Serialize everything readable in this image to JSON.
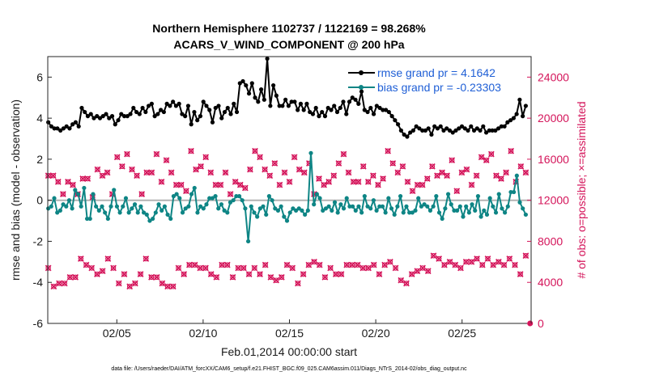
{
  "chart_data": {
    "type": "line",
    "title_line1": "Northern Hemisphere 1102737 / 1122169 = 98.268%",
    "title_line2": "ACARS_V_WIND_COMPONENT @ 200 hPa",
    "xlabel": "Feb.01,2014 00:00:00 start",
    "ylabel_left": "rmse and bias (model - observation)",
    "ylabel_right": "# of obs: o=possible; ×=assimilated",
    "footer": "data file: /Users/raeder/DAI/ATM_forcXX/CAM6_setup/f.e21.FHIST_BGC.f09_025.CAM6assim.011/Diags_NTrS_2014-02/obs_diag_output.nc",
    "xlim": [
      1,
      29
    ],
    "ylim_left": [
      -6,
      7
    ],
    "ylim_right": [
      0,
      26000
    ],
    "x_ticks": [
      5,
      10,
      15,
      20,
      25
    ],
    "x_tick_labels": [
      "02/05",
      "02/10",
      "02/15",
      "02/20",
      "02/25"
    ],
    "y_ticks_left": [
      "-6",
      "-4",
      "-2",
      "0",
      "2",
      "4",
      "6"
    ],
    "y_ticks_right": [
      "0",
      "4000",
      "8000",
      "12000",
      "16000",
      "20000",
      "24000"
    ],
    "colors": {
      "rmse": "#000000",
      "bias": "#0e8585",
      "obs": "#d4145a",
      "zero_line": "#b3b3b3",
      "legend_text": "#1f5fd6"
    },
    "series": [
      {
        "name": "rmse",
        "legend": "rmse grand pr = 4.1642",
        "values": [
          3.8,
          3.6,
          3.5,
          3.5,
          3.4,
          3.5,
          3.6,
          3.5,
          3.7,
          3.8,
          3.6,
          4.5,
          4.3,
          4.1,
          4.2,
          4.0,
          4.1,
          4.0,
          4.1,
          4.2,
          4.0,
          4.1,
          3.7,
          3.9,
          4.2,
          4.1,
          4.1,
          4.2,
          4.5,
          4.3,
          4.2,
          4.5,
          4.3,
          4.6,
          4.7,
          4.1,
          4.2,
          4.4,
          4.3,
          4.7,
          4.6,
          4.8,
          4.6,
          4.7,
          4.2,
          4.1,
          4.6,
          3.7,
          4.3,
          3.9,
          4.1,
          4.8,
          4.6,
          4.4,
          3.8,
          4.5,
          4.6,
          4.0,
          4.3,
          4.5,
          4.2,
          4.7,
          4.3,
          5.7,
          5.8,
          5.6,
          5.2,
          5.7,
          5.0,
          4.8,
          5.4,
          4.9,
          6.9,
          4.6,
          5.6,
          5.1,
          4.6,
          4.6,
          4.9,
          4.6,
          4.8,
          4.8,
          4.4,
          4.7,
          4.4,
          4.7,
          4.3,
          4.2,
          4.5,
          4.1,
          4.3,
          4.1,
          4.5,
          4.4,
          4.6,
          4.3,
          4.5,
          4.8,
          4.2,
          4.8,
          5.0,
          4.9,
          4.7,
          5.3,
          4.4,
          4.3,
          4.5,
          4.2,
          4.6,
          4.5,
          4.4,
          4.4,
          4.3,
          4.1,
          3.9,
          3.7,
          3.4,
          3.2,
          3.1,
          3.3,
          3.4,
          3.6,
          3.5,
          3.4,
          3.4,
          3.5,
          3.2,
          3.6,
          3.5,
          3.6,
          3.4,
          3.5,
          3.4,
          3.3,
          3.4,
          3.5,
          3.6,
          3.5,
          3.4,
          3.6,
          3.4,
          3.5,
          3.4,
          3.6,
          3.3,
          3.4,
          3.4,
          3.4,
          3.5,
          3.6,
          3.6,
          3.8,
          3.9,
          4.0,
          4.2,
          4.9,
          4.1,
          4.6
        ]
      },
      {
        "name": "bias",
        "legend": "bias grand pr = -0.23303",
        "values": [
          -0.4,
          -0.3,
          0.1,
          -0.6,
          -0.5,
          -0.2,
          -0.3,
          0.0,
          -0.4,
          0.5,
          0.3,
          -0.3,
          0.6,
          -0.9,
          -0.9,
          0.3,
          -0.3,
          -0.5,
          -0.3,
          -0.6,
          -0.9,
          -0.3,
          0.5,
          -0.3,
          -0.6,
          -0.3,
          0.1,
          -0.6,
          -0.4,
          -0.2,
          -0.6,
          -0.3,
          -0.6,
          -0.7,
          -1.0,
          -0.9,
          -0.6,
          -0.2,
          -0.5,
          -0.3,
          -0.7,
          -0.9,
          0.2,
          0.3,
          0.1,
          -0.6,
          -0.4,
          -0.3,
          0.3,
          0.6,
          -0.6,
          -0.3,
          -0.4,
          -0.2,
          0.1,
          0.1,
          0.2,
          -0.4,
          -0.2,
          -0.5,
          -0.6,
          -0.1,
          0.0,
          0.2,
          0.2,
          0.0,
          -0.4,
          -2.0,
          -0.3,
          -0.6,
          -0.8,
          -0.4,
          -0.3,
          -0.7,
          0.2,
          0.0,
          -0.4,
          -0.5,
          -0.3,
          -0.8,
          -1.0,
          -0.6,
          -0.4,
          -0.5,
          -0.4,
          -0.5,
          -0.7,
          -0.5,
          2.3,
          -0.2,
          0.3,
          0.1,
          -0.5,
          -0.4,
          -0.3,
          -0.5,
          -0.1,
          -0.6,
          -0.2,
          -0.4,
          0.1,
          -0.3,
          -0.3,
          -0.5,
          -0.3,
          -0.6,
          0.2,
          -0.3,
          -0.4,
          0.0,
          -0.5,
          -0.3,
          -0.3,
          -0.6,
          0.1,
          -0.4,
          -0.7,
          -0.3,
          0.2,
          -0.6,
          -0.3,
          -0.6,
          -0.6,
          -0.5,
          0.1,
          -0.3,
          -0.2,
          -0.3,
          -0.5,
          -0.3,
          0.2,
          -0.6,
          -0.9,
          -0.4,
          0.3,
          -0.2,
          -0.5,
          -0.5,
          -0.3,
          -0.8,
          -0.3,
          -0.6,
          -0.2,
          -0.5,
          0.2,
          -0.8,
          -0.5,
          -0.7,
          0.1,
          -0.3,
          -0.6,
          0.3,
          -0.4,
          -0.6,
          -0.3,
          0.4,
          0.4,
          1.2,
          -0.1,
          -0.4,
          -0.7
        ]
      }
    ],
    "obs_high": [
      14400,
      14400,
      13800,
      12600,
      13800,
      13500,
      12600,
      14100,
      14100,
      12300,
      15000,
      14400,
      14700,
      12600,
      16200,
      15300,
      16500,
      15000,
      14400,
      12600,
      14700,
      14700,
      16500,
      13800,
      15900,
      14700,
      13500,
      13500,
      12900,
      16800,
      15000,
      15300,
      16200,
      14700,
      13500,
      13500,
      14700,
      12600,
      13800,
      13500,
      13200,
      15000,
      16800,
      16200,
      15000,
      14400,
      15600,
      13500,
      14700,
      13800,
      16200,
      15000,
      14700,
      15600,
      12600,
      14100,
      13500,
      13800,
      14400,
      15600,
      16500,
      14700,
      13800,
      13800,
      15300,
      13800,
      14400,
      13500,
      14100,
      16800,
      15600,
      14700,
      15300,
      13800,
      12900,
      13500,
      13500,
      14100,
      15300,
      14400,
      14700,
      14400,
      15900,
      12900,
      14700,
      15000,
      13500,
      14400,
      16200,
      15900,
      16500,
      14400,
      14100,
      14700,
      16800,
      13800,
      15300,
      14700
    ],
    "obs_low": [
      5400,
      3600,
      3900,
      3900,
      4500,
      4500,
      6300,
      5700,
      5400,
      4800,
      5100,
      6300,
      5400,
      3900,
      4800,
      3600,
      3900,
      4800,
      6300,
      4500,
      4500,
      3900,
      3600,
      3600,
      5400,
      4800,
      5700,
      5700,
      5400,
      5400,
      4800,
      4500,
      5700,
      5700,
      4500,
      5400,
      5400,
      4800,
      5400,
      4800,
      5700,
      4500,
      4200,
      4500,
      5700,
      5400,
      3900,
      4800,
      5700,
      6000,
      5700,
      4500,
      5400,
      4800,
      4800,
      5700,
      5700,
      5700,
      5400,
      5400,
      5700,
      4800,
      5700,
      6000,
      5400,
      4200,
      3900,
      4800,
      5100,
      5400,
      5100,
      6600,
      6300,
      5700,
      6000,
      5700,
      5400,
      6000,
      6000,
      6300,
      5700,
      6300,
      5700,
      6000,
      5700,
      6300,
      5700,
      4800,
      6600
    ]
  }
}
